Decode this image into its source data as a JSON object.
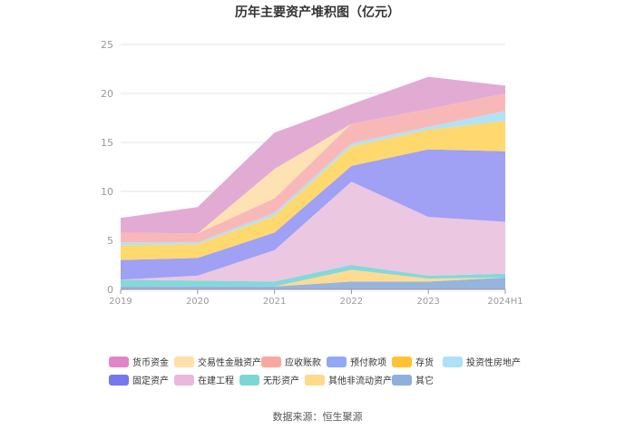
{
  "chart_data": {
    "type": "area",
    "stacked": true,
    "title": "历年主要资产堆积图（亿元）",
    "x": [
      "2019",
      "2020",
      "2021",
      "2022",
      "2023",
      "2024H1"
    ],
    "ylim": [
      0,
      25
    ],
    "yticks": [
      0,
      5,
      10,
      15,
      20,
      25
    ],
    "xlabel": "",
    "ylabel": "",
    "grid": true,
    "legend_position": "bottom",
    "series": [
      {
        "name": "其它",
        "color": "#8fb0dc",
        "values": [
          0.3,
          0.3,
          0.3,
          0.8,
          0.8,
          1.2
        ]
      },
      {
        "name": "其他非流动资产",
        "color": "#ffd98c",
        "values": [
          0.0,
          0.0,
          0.0,
          1.2,
          0.3,
          0.0
        ]
      },
      {
        "name": "无形资产",
        "color": "#7dd6d6",
        "values": [
          0.7,
          0.6,
          0.5,
          0.5,
          0.3,
          0.4
        ]
      },
      {
        "name": "在建工程",
        "color": "#eac4e0",
        "values": [
          0.0,
          0.5,
          3.2,
          8.5,
          6.0,
          5.3
        ]
      },
      {
        "name": "固定资产",
        "color": "#9b9bf3",
        "values": [
          2.0,
          1.8,
          1.8,
          1.6,
          6.9,
          7.2
        ]
      },
      {
        "name": "预付款项",
        "color": "#8fa8f7",
        "values": [
          0.0,
          0.0,
          0.0,
          0.0,
          0.0,
          0.0
        ]
      },
      {
        "name": "存货",
        "color": "#ffd666",
        "values": [
          1.5,
          1.4,
          1.7,
          2.0,
          2.0,
          3.1
        ]
      },
      {
        "name": "投资性房地产",
        "color": "#aee0f7",
        "values": [
          0.3,
          0.2,
          0.3,
          0.3,
          0.3,
          1.0
        ]
      },
      {
        "name": "应收账款",
        "color": "#f9b4b4",
        "values": [
          1.0,
          0.9,
          1.5,
          2.0,
          1.8,
          1.8
        ]
      },
      {
        "name": "交易性金融资产",
        "color": "#ffe0b0",
        "values": [
          0.0,
          0.0,
          3.0,
          0.0,
          0.0,
          0.0
        ]
      },
      {
        "name": "货币资金",
        "color": "#e0a6d2",
        "values": [
          1.5,
          2.7,
          3.7,
          2.0,
          3.3,
          0.8
        ]
      }
    ]
  },
  "legend": {
    "rows": [
      [
        {
          "label": "货币资金",
          "color": "#e086c8"
        },
        {
          "label": "交易性金融资产",
          "color": "#ffe0a8"
        },
        {
          "label": "应收账款",
          "color": "#f9a8a0"
        },
        {
          "label": "预付款项",
          "color": "#8fa8f7"
        },
        {
          "label": "存货",
          "color": "#ffc233"
        },
        {
          "label": "投资性房地产",
          "color": "#aee0f7"
        }
      ],
      [
        {
          "label": "固定资产",
          "color": "#7577ee"
        },
        {
          "label": "在建工程",
          "color": "#e9b8dc"
        },
        {
          "label": "无形资产",
          "color": "#7dd6d6"
        },
        {
          "label": "其他非流动资产",
          "color": "#ffd98c"
        },
        {
          "label": "其它",
          "color": "#8fb0dc"
        }
      ]
    ]
  },
  "source": "数据来源：恒生聚源"
}
